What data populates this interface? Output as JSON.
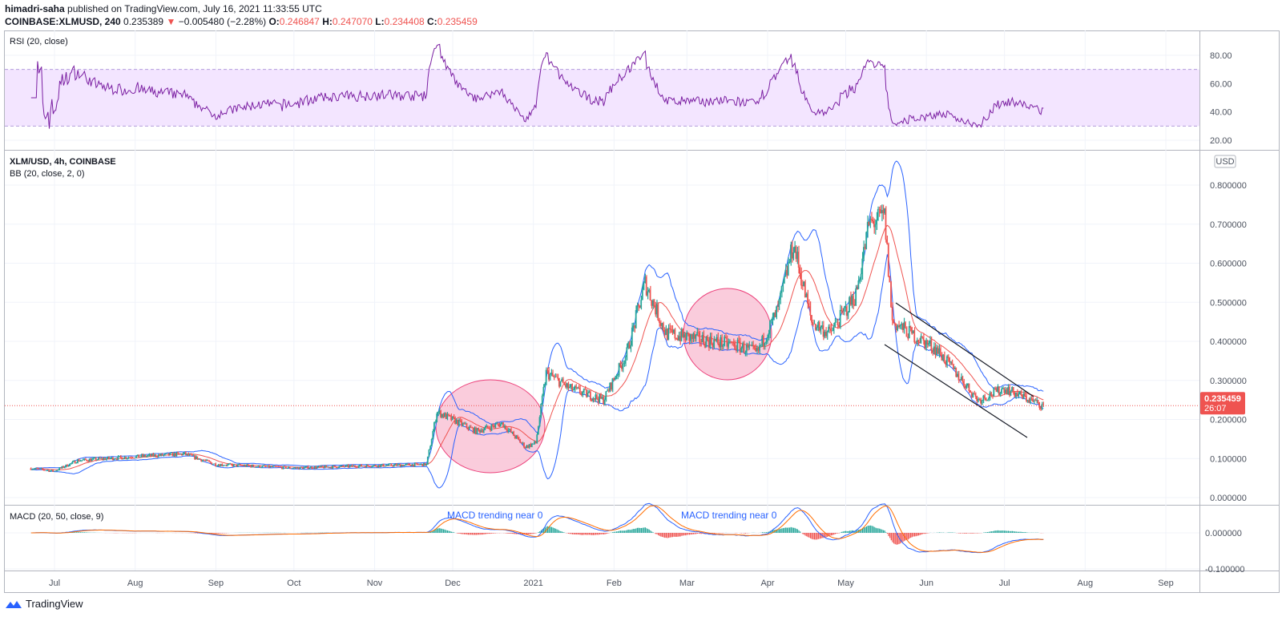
{
  "header": {
    "author": "himadri-saha",
    "published": "published on TradingView.com, July 16, 2021 11:33:55 UTC",
    "symbol": "COINBASE:XLMUSD, 240",
    "last": "0.235389",
    "change": "−0.005480 (−2.28%)",
    "o_label": "O:",
    "o": "0.246847",
    "h_label": "H:",
    "h": "0.247070",
    "l_label": "L:",
    "l": "0.234408",
    "c_label": "C:",
    "c": "0.235459",
    "direction_icon": "triangle-down-icon"
  },
  "panes": {
    "rsi_title": "RSI (20, close)",
    "main_title": "XLM/USD, 4h, COINBASE",
    "bb_title": "BB (20, close, 2, 0)",
    "macd_title": "MACD (20, 50, close, 9)",
    "currency_badge": "USD",
    "price_tag": "0.235459",
    "countdown": "26:07"
  },
  "annotations": [
    "MACD trending near 0",
    "MACD trending near 0"
  ],
  "footer": {
    "brand": "TradingView"
  },
  "colors": {
    "up": "#26a69a",
    "down": "#ef5350",
    "bb": "#2962ff",
    "rsi": "#7b1fa2",
    "rsi_band": "#f3e5ff",
    "macd": "#2962ff",
    "signal": "#ff6d00",
    "annotation": "#ef5b8a",
    "annotation_text": "#2962ff"
  },
  "chart_data": {
    "type": "candlestick",
    "rsi_ticks": [
      "80.00",
      "60.00",
      "40.00",
      "20.00"
    ],
    "rsi_band": [
      30,
      70
    ],
    "rsi_range": [
      15,
      90
    ],
    "price_ticks": [
      "0.800000",
      "0.700000",
      "0.600000",
      "0.500000",
      "0.400000",
      "0.300000",
      "0.200000",
      "0.100000",
      "0.000000"
    ],
    "price_range": [
      -0.02,
      0.84
    ],
    "macd_ticks": [
      "0.000000",
      "-0.100000"
    ],
    "time_ticks": [
      {
        "label": "Jul",
        "date": "2020-07-01"
      },
      {
        "label": "Aug",
        "date": "2020-08-01"
      },
      {
        "label": "Sep",
        "date": "2020-09-01"
      },
      {
        "label": "Oct",
        "date": "2020-10-01"
      },
      {
        "label": "Nov",
        "date": "2020-11-01"
      },
      {
        "label": "Dec",
        "date": "2020-12-01"
      },
      {
        "label": "2021",
        "date": "2021-01-01"
      },
      {
        "label": "Feb",
        "date": "2021-02-01"
      },
      {
        "label": "Mar",
        "date": "2021-03-01"
      },
      {
        "label": "Apr",
        "date": "2021-04-01"
      },
      {
        "label": "May",
        "date": "2021-05-01"
      },
      {
        "label": "Jun",
        "date": "2021-06-01"
      },
      {
        "label": "Jul",
        "date": "2021-07-01"
      },
      {
        "label": "Aug",
        "date": "2021-08-01"
      },
      {
        "label": "Sep",
        "date": "2021-09-01"
      }
    ],
    "current_price": 0.235459,
    "approx_close": [
      [
        "2020-06-22",
        0.075
      ],
      [
        "2020-07-01",
        0.068
      ],
      [
        "2020-07-10",
        0.095
      ],
      [
        "2020-08-01",
        0.105
      ],
      [
        "2020-08-20",
        0.112
      ],
      [
        "2020-09-01",
        0.085
      ],
      [
        "2020-10-01",
        0.076
      ],
      [
        "2020-11-01",
        0.082
      ],
      [
        "2020-11-21",
        0.085
      ],
      [
        "2020-11-25",
        0.22
      ],
      [
        "2020-12-10",
        0.17
      ],
      [
        "2020-12-20",
        0.19
      ],
      [
        "2020-12-29",
        0.13
      ],
      [
        "2021-01-02",
        0.14
      ],
      [
        "2021-01-06",
        0.32
      ],
      [
        "2021-01-15",
        0.28
      ],
      [
        "2021-01-28",
        0.25
      ],
      [
        "2021-02-06",
        0.37
      ],
      [
        "2021-02-13",
        0.55
      ],
      [
        "2021-02-21",
        0.42
      ],
      [
        "2021-03-02",
        0.41
      ],
      [
        "2021-03-20",
        0.39
      ],
      [
        "2021-03-28",
        0.37
      ],
      [
        "2021-04-05",
        0.48
      ],
      [
        "2021-04-11",
        0.65
      ],
      [
        "2021-04-18",
        0.45
      ],
      [
        "2021-04-25",
        0.42
      ],
      [
        "2021-05-05",
        0.52
      ],
      [
        "2021-05-10",
        0.7
      ],
      [
        "2021-05-16",
        0.72
      ],
      [
        "2021-05-19",
        0.45
      ],
      [
        "2021-05-26",
        0.42
      ],
      [
        "2021-06-05",
        0.38
      ],
      [
        "2021-06-21",
        0.25
      ],
      [
        "2021-07-01",
        0.28
      ],
      [
        "2021-07-16",
        0.235
      ]
    ]
  }
}
